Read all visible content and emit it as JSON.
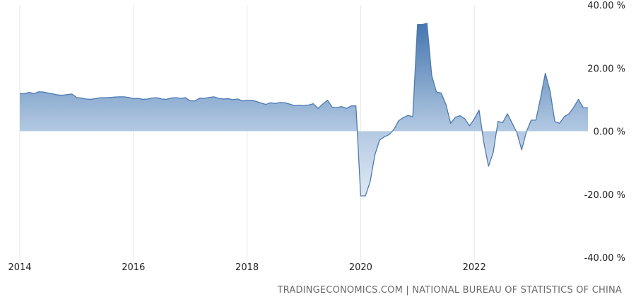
{
  "chart_data": {
    "type": "area",
    "series": [
      {
        "x": [
          2014.0,
          2014.0833,
          2014.1667,
          2014.25,
          2014.3333,
          2014.4167,
          2014.5,
          2014.5833,
          2014.6667,
          2014.75,
          2014.8333,
          2014.9167,
          2015.0,
          2015.0833,
          2015.1667,
          2015.25,
          2015.3333,
          2015.4167,
          2015.5,
          2015.5833,
          2015.6667,
          2015.75,
          2015.8333,
          2015.9167,
          2016.0,
          2016.0833,
          2016.1667,
          2016.25,
          2016.3333,
          2016.4167,
          2016.5,
          2016.5833,
          2016.6667,
          2016.75,
          2016.8333,
          2016.9167,
          2017.0,
          2017.0833,
          2017.1667,
          2017.25,
          2017.3333,
          2017.4167,
          2017.5,
          2017.5833,
          2017.6667,
          2017.75,
          2017.8333,
          2017.9167,
          2018.0,
          2018.0833,
          2018.1667,
          2018.25,
          2018.3333,
          2018.4167,
          2018.5,
          2018.5833,
          2018.6667,
          2018.75,
          2018.8333,
          2018.9167,
          2019.0,
          2019.0833,
          2019.1667,
          2019.25,
          2019.3333,
          2019.4167,
          2019.5,
          2019.5833,
          2019.6667,
          2019.75,
          2019.8333,
          2019.9167,
          2020.0,
          2020.0833,
          2020.1667,
          2020.25,
          2020.3333,
          2020.4167,
          2020.5,
          2020.5833,
          2020.6667,
          2020.75,
          2020.8333,
          2020.9167,
          2021.0,
          2021.0833,
          2021.1667,
          2021.25,
          2021.3333,
          2021.4167,
          2021.5,
          2021.5833,
          2021.6667,
          2021.75,
          2021.8333,
          2021.9167,
          2022.0,
          2022.0833,
          2022.1667,
          2022.25,
          2022.3333,
          2022.4167,
          2022.5,
          2022.5833,
          2022.6667,
          2022.75,
          2022.8333,
          2022.9167,
          2023.0,
          2023.0833,
          2023.1667,
          2023.25,
          2023.3333,
          2023.4167,
          2023.5,
          2023.5833,
          2023.6667,
          2023.75,
          2023.8333,
          2023.9167,
          2024.0
        ],
        "values": [
          11.9,
          11.9,
          12.3,
          11.9,
          12.5,
          12.4,
          12.1,
          11.8,
          11.5,
          11.4,
          11.6,
          11.8,
          10.7,
          10.5,
          10.2,
          10.1,
          10.3,
          10.6,
          10.6,
          10.7,
          10.8,
          10.9,
          10.9,
          10.7,
          10.3,
          10.4,
          10.1,
          10.2,
          10.5,
          10.6,
          10.2,
          10.1,
          10.5,
          10.6,
          10.4,
          10.6,
          9.6,
          9.6,
          10.5,
          10.4,
          10.7,
          10.9,
          10.4,
          10.2,
          10.3,
          10.0,
          10.2,
          9.6,
          9.7,
          9.8,
          9.4,
          8.9,
          8.5,
          9.0,
          8.8,
          9.1,
          9.0,
          8.6,
          8.1,
          8.2,
          8.1,
          8.3,
          8.7,
          7.2,
          8.6,
          9.8,
          7.6,
          7.5,
          7.8,
          7.2,
          8.0,
          8.0,
          -20.5,
          -20.5,
          -16.0,
          -7.5,
          -2.8,
          -1.8,
          -1.1,
          0.5,
          3.3,
          4.3,
          5.0,
          4.6,
          33.8,
          33.8,
          34.2,
          17.7,
          12.4,
          12.1,
          8.5,
          2.5,
          4.4,
          4.9,
          3.9,
          1.7,
          3.9,
          6.7,
          -3.5,
          -11.1,
          -6.7,
          3.1,
          2.7,
          5.5,
          2.5,
          -0.5,
          -5.9,
          -0.2,
          3.5,
          3.5,
          10.6,
          18.4,
          12.7,
          3.1,
          2.5,
          4.6,
          5.5,
          7.6,
          10.1,
          7.4,
          7.4
        ]
      }
    ],
    "ylim": [
      -40,
      40
    ],
    "yticks": [
      40,
      20,
      0,
      -20,
      -40
    ],
    "ytick_labels": [
      "40.00 %",
      "20.00 %",
      "0.00 %",
      "-20.00 %",
      "-40.00 %"
    ],
    "xlim": [
      2014,
      2024
    ],
    "xticks": [
      2014,
      2016,
      2018,
      2020,
      2022
    ],
    "xtick_labels": [
      "2014",
      "2016",
      "2018",
      "2020",
      "2022"
    ],
    "grid": "vertical",
    "colors": {
      "line": "#4a7ab4",
      "fill_dark": "#3f72ad",
      "fill_light": "#dbe6f2",
      "grid": "#e6e6e6"
    }
  },
  "footer": {
    "source": "TRADINGECONOMICS.COM | NATIONAL BUREAU OF STATISTICS OF CHINA"
  }
}
